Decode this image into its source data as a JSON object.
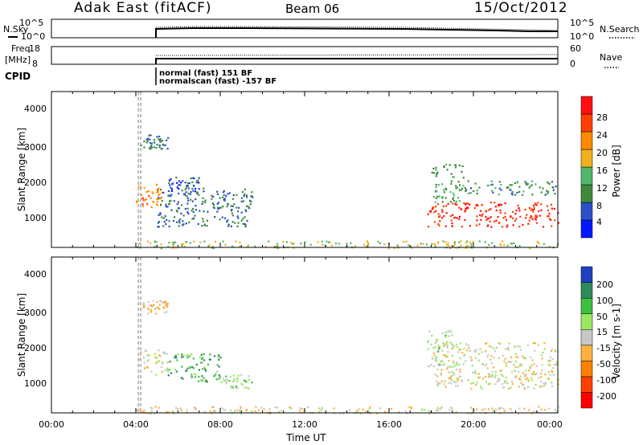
{
  "header": {
    "station": "Adak East (fitACF)",
    "beam": "Beam 06",
    "date": "15/Oct/2012"
  },
  "nsky_panel": {
    "left_label": "N.Sky",
    "left_ticks": [
      "10^5",
      "10^0"
    ],
    "right_label": "N.Search",
    "right_ticks": [
      "10^5",
      "10^0"
    ]
  },
  "freq_panel": {
    "left_label_line1": "Freq.",
    "left_label_line2": "[MHz]",
    "left_ticks": [
      "18",
      "8"
    ],
    "right_ticks": [
      "60",
      "0"
    ],
    "right_label": "Nave"
  },
  "cpid_panel": {
    "label": "CPID",
    "text_line1": "normal (fast) 151 BF",
    "text_line2": "normalscan (fast) -157 BF"
  },
  "power_panel": {
    "ylabel": "Slant Range [km]",
    "yticks": [
      "4000",
      "3000",
      "2000",
      "1000"
    ],
    "colorbar_label": "Power [dB]",
    "colorbar_ticks": [
      "28",
      "24",
      "20",
      "16",
      "12",
      "8",
      "4"
    ],
    "colors": [
      "#0018ff",
      "#2c4fc8",
      "#3f8a3a",
      "#4fb86a",
      "#f0b020",
      "#ff8a00",
      "#ff4000",
      "#ff1010"
    ]
  },
  "velocity_panel": {
    "ylabel": "Slant Range [km]",
    "yticks": [
      "4000",
      "3000",
      "2000",
      "1000"
    ],
    "colorbar_label": "Velocity [m s-1]",
    "colorbar_ticks": [
      "200",
      "100",
      "50",
      "15",
      "-15",
      "-50",
      "-100",
      "-200"
    ],
    "colors": [
      "#2040c0",
      "#2e8a5a",
      "#3fbf3f",
      "#9be860",
      "#c8c8c8",
      "#ffb040",
      "#ff8000",
      "#ff4000",
      "#ff0000"
    ]
  },
  "xaxis": {
    "label": "Time UT",
    "ticks": [
      "00:00",
      "04:00",
      "08:00",
      "12:00",
      "16:00",
      "20:00",
      "00:00"
    ]
  },
  "chart_data": [
    {
      "type": "heatmap",
      "title": "Power",
      "xlabel": "Time UT",
      "ylabel": "Slant Range [km]",
      "xlim": [
        0,
        24
      ],
      "ylim": [
        200,
        4600
      ],
      "colorbar_range": [
        0,
        32
      ],
      "regions": [
        {
          "t": [
            4.0,
            5.2
          ],
          "r": [
            1300,
            2000
          ],
          "value": 22
        },
        {
          "t": [
            4.2,
            5.5
          ],
          "r": [
            3000,
            3400
          ],
          "value": 8
        },
        {
          "t": [
            5.0,
            9.5
          ],
          "r": [
            800,
            1900
          ],
          "value": 8
        },
        {
          "t": [
            5.5,
            7.0
          ],
          "r": [
            1800,
            2200
          ],
          "value": 6
        },
        {
          "t": [
            17.8,
            24.0
          ],
          "r": [
            800,
            1500
          ],
          "value": 28
        },
        {
          "t": [
            18.0,
            19.5
          ],
          "r": [
            1500,
            2600
          ],
          "value": 12
        },
        {
          "t": [
            19.5,
            24.0
          ],
          "r": [
            1700,
            2100
          ],
          "value": 10
        },
        {
          "t": [
            4.0,
            24.0
          ],
          "r": [
            200,
            400
          ],
          "value": 16
        }
      ]
    },
    {
      "type": "heatmap",
      "title": "Velocity",
      "xlabel": "Time UT",
      "ylabel": "Slant Range [km]",
      "xlim": [
        0,
        24
      ],
      "ylim": [
        200,
        4600
      ],
      "colorbar_range": [
        -250,
        250
      ],
      "regions": [
        {
          "t": [
            4.0,
            5.5
          ],
          "r": [
            1300,
            2000
          ],
          "value": 0
        },
        {
          "t": [
            4.2,
            5.5
          ],
          "r": [
            3000,
            3400
          ],
          "value": -30
        },
        {
          "t": [
            5.5,
            8.0
          ],
          "r": [
            1100,
            1900
          ],
          "value": 130
        },
        {
          "t": [
            8.0,
            9.5
          ],
          "r": [
            900,
            1300
          ],
          "value": 40
        },
        {
          "t": [
            18.0,
            24.0
          ],
          "r": [
            900,
            2200
          ],
          "value": 0
        },
        {
          "t": [
            17.8,
            19.0
          ],
          "r": [
            1500,
            2600
          ],
          "value": 30
        },
        {
          "t": [
            4.0,
            24.0
          ],
          "r": [
            200,
            400
          ],
          "value": -20
        }
      ]
    }
  ]
}
